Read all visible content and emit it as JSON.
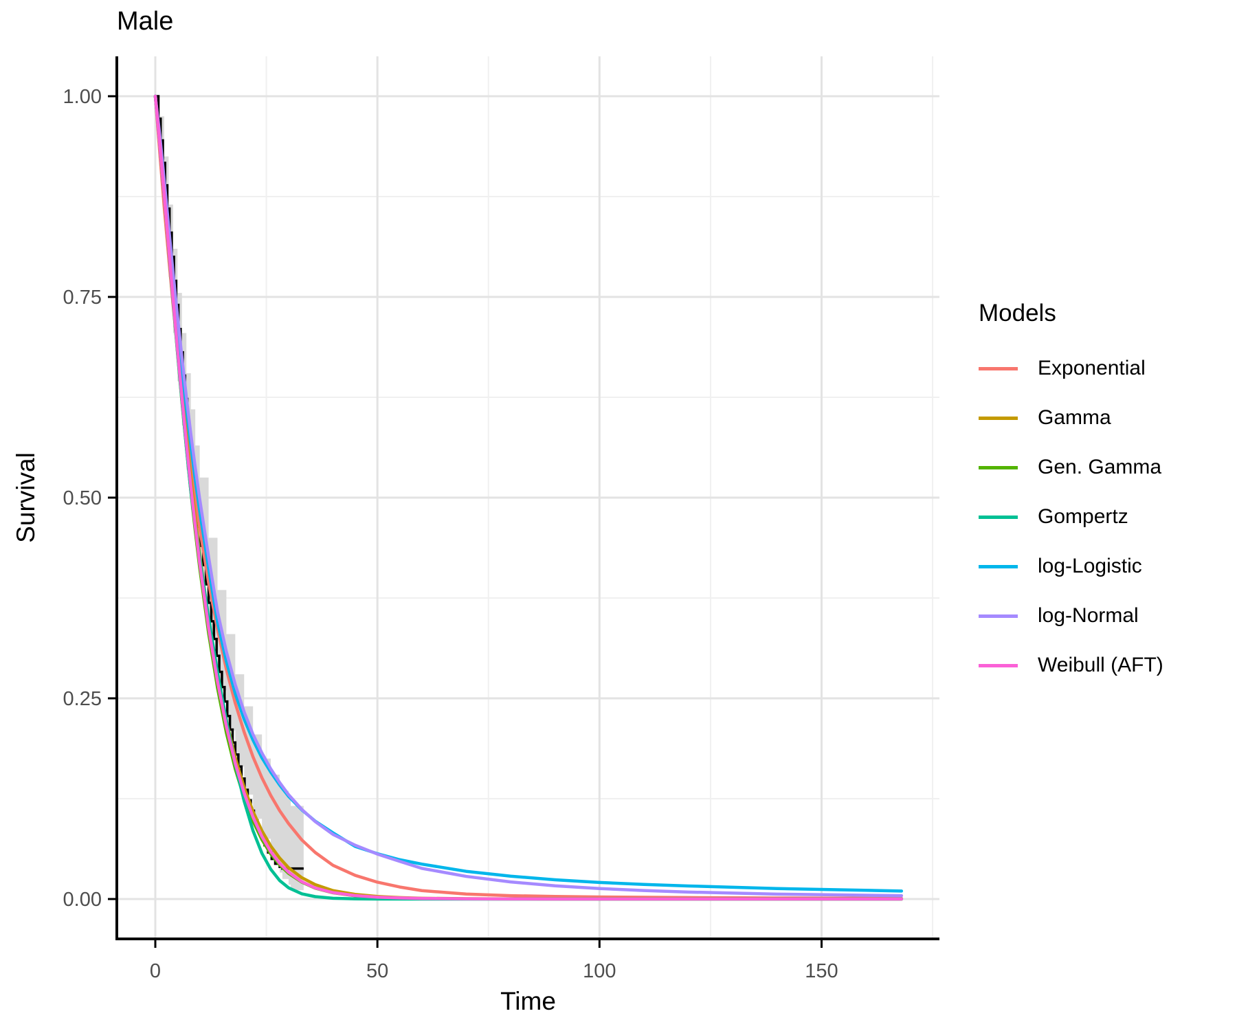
{
  "title": "Male",
  "axes": {
    "x": {
      "label": "Time",
      "tick_labels": [
        "0",
        "50",
        "100",
        "150"
      ],
      "tick_values": [
        0,
        50,
        100,
        150
      ],
      "minor_values": [
        25,
        75,
        125,
        175
      ],
      "range": [
        0,
        176.5
      ]
    },
    "y": {
      "label": "Survival",
      "tick_labels": [
        "1.00",
        "0.75",
        "0.50",
        "0.25",
        "0.00"
      ],
      "tick_values": [
        1,
        0.75,
        0.5,
        0.25,
        0
      ],
      "minor_values": [
        0.875,
        0.625,
        0.375,
        0.125
      ],
      "range": [
        -0.05,
        1.05
      ]
    }
  },
  "legend": {
    "title": "Models",
    "items": [
      {
        "label": "Exponential",
        "color": "#F8766D"
      },
      {
        "label": "Gamma",
        "color": "#C49A00"
      },
      {
        "label": "Gen. Gamma",
        "color": "#53B400"
      },
      {
        "label": "Gompertz",
        "color": "#00C094"
      },
      {
        "label": "log-Logistic",
        "color": "#00B6EB"
      },
      {
        "label": "log-Normal",
        "color": "#A58AFF"
      },
      {
        "label": "Weibull (AFT)",
        "color": "#FB61D7"
      }
    ]
  },
  "colors": {
    "grid_major": "#E3E3E3",
    "grid_minor": "#F0F0F0",
    "axis_line": "#000000",
    "tick_label": "#4D4D4D",
    "ribbon": "#D9D9D9",
    "km_step": "#000000",
    "panel_background": "#FFFFFF"
  },
  "chart_data": {
    "type": "line",
    "title": "Male",
    "xlabel": "Time",
    "ylabel": "Survival",
    "xlim": [
      0,
      168
    ],
    "ylim": [
      0,
      1
    ],
    "grid": true,
    "legend_position": "right",
    "ci_ribbon": {
      "name": "kaplan-meier-confidence-band",
      "color": "#D9D9D9",
      "points": [
        [
          0,
          1,
          1
        ],
        [
          1,
          0.92,
          0.975
        ],
        [
          2,
          0.845,
          0.925
        ],
        [
          3,
          0.775,
          0.865
        ],
        [
          4,
          0.705,
          0.81
        ],
        [
          5,
          0.645,
          0.755
        ],
        [
          6,
          0.59,
          0.705
        ],
        [
          7,
          0.535,
          0.655
        ],
        [
          8,
          0.485,
          0.61
        ],
        [
          9,
          0.44,
          0.565
        ],
        [
          10,
          0.4,
          0.525
        ],
        [
          12,
          0.325,
          0.45
        ],
        [
          14,
          0.26,
          0.385
        ],
        [
          16,
          0.21,
          0.33
        ],
        [
          18,
          0.165,
          0.28
        ],
        [
          20,
          0.13,
          0.24
        ],
        [
          22,
          0.1,
          0.205
        ],
        [
          24,
          0.075,
          0.175
        ],
        [
          26,
          0.052,
          0.155
        ],
        [
          28,
          0.033,
          0.14
        ],
        [
          28.6,
          0.025,
          0.135
        ],
        [
          30,
          0.018,
          0.125
        ],
        [
          30.5,
          0.011,
          0.116
        ],
        [
          33.4,
          0.011,
          0.116
        ]
      ]
    },
    "km_step": {
      "name": "kaplan-meier-estimate",
      "color": "#000000",
      "points": [
        [
          0,
          1.0
        ],
        [
          0.7,
          0.972
        ],
        [
          1.2,
          0.945
        ],
        [
          1.7,
          0.917
        ],
        [
          2.2,
          0.889
        ],
        [
          2.7,
          0.86
        ],
        [
          3.2,
          0.83
        ],
        [
          3.7,
          0.8
        ],
        [
          4.2,
          0.77
        ],
        [
          4.7,
          0.74
        ],
        [
          5.2,
          0.71
        ],
        [
          5.7,
          0.681
        ],
        [
          6.2,
          0.652
        ],
        [
          6.7,
          0.623
        ],
        [
          7.2,
          0.595
        ],
        [
          7.7,
          0.567
        ],
        [
          8.2,
          0.54
        ],
        [
          8.7,
          0.514
        ],
        [
          9.2,
          0.489
        ],
        [
          9.7,
          0.464
        ],
        [
          10.2,
          0.44
        ],
        [
          10.8,
          0.416
        ],
        [
          11.4,
          0.392
        ],
        [
          12,
          0.369
        ],
        [
          12.6,
          0.346
        ],
        [
          13.2,
          0.324
        ],
        [
          13.8,
          0.303
        ],
        [
          14.4,
          0.283
        ],
        [
          15,
          0.264
        ],
        [
          15.6,
          0.246
        ],
        [
          16.2,
          0.228
        ],
        [
          16.8,
          0.211
        ],
        [
          17.4,
          0.195
        ],
        [
          18,
          0.18
        ],
        [
          18.7,
          0.165
        ],
        [
          19.4,
          0.15
        ],
        [
          20.1,
          0.136
        ],
        [
          20.8,
          0.123
        ],
        [
          21.5,
          0.11
        ],
        [
          22.2,
          0.098
        ],
        [
          23,
          0.087
        ],
        [
          23.8,
          0.077
        ],
        [
          24.6,
          0.067
        ],
        [
          25.4,
          0.058
        ],
        [
          26.2,
          0.05
        ],
        [
          27,
          0.044
        ],
        [
          28,
          0.04
        ],
        [
          28.6,
          0.038
        ],
        [
          33.4,
          0.038
        ]
      ]
    },
    "series": [
      {
        "name": "Exponential",
        "color": "#F8766D",
        "x": [
          0,
          1,
          2,
          3,
          4,
          5,
          6,
          7,
          8,
          9,
          10,
          12,
          14,
          16,
          18,
          20,
          22,
          24,
          26,
          28,
          30,
          33,
          36,
          40,
          45,
          50,
          55,
          60,
          70,
          80,
          90,
          100,
          120,
          140,
          168
        ],
        "y": [
          1,
          0.93,
          0.862,
          0.8,
          0.74,
          0.685,
          0.634,
          0.586,
          0.541,
          0.5,
          0.462,
          0.394,
          0.336,
          0.286,
          0.244,
          0.208,
          0.177,
          0.151,
          0.129,
          0.11,
          0.094,
          0.0735,
          0.058,
          0.042,
          0.0295,
          0.021,
          0.015,
          0.0105,
          0.0062,
          0.0042,
          0.0032,
          0.0026,
          0.0018,
          0.0013,
          0.0008
        ]
      },
      {
        "name": "Gamma",
        "color": "#C49A00",
        "x": [
          0,
          1,
          2,
          3,
          4,
          5,
          6,
          7,
          8,
          9,
          10,
          12,
          14,
          16,
          18,
          20,
          22,
          24,
          26,
          28,
          30,
          33,
          36,
          40,
          45,
          50,
          55,
          60,
          70,
          80,
          90,
          100,
          120,
          140,
          168
        ],
        "y": [
          1,
          0.945,
          0.882,
          0.818,
          0.754,
          0.692,
          0.633,
          0.577,
          0.524,
          0.475,
          0.429,
          0.347,
          0.279,
          0.222,
          0.176,
          0.139,
          0.109,
          0.085,
          0.066,
          0.051,
          0.039,
          0.0265,
          0.018,
          0.0105,
          0.0058,
          0.0032,
          0.0018,
          0.001,
          0.0004,
          0.0002,
          0.0001,
          0,
          0,
          0,
          0
        ]
      },
      {
        "name": "Gen. Gamma",
        "color": "#53B400",
        "x": [
          0,
          1,
          2,
          3,
          4,
          5,
          6,
          7,
          8,
          9,
          10,
          12,
          14,
          16,
          18,
          20,
          22,
          24,
          26,
          28,
          30,
          33,
          36,
          40,
          45,
          50,
          55,
          60,
          70,
          80,
          90,
          100,
          120,
          140,
          168
        ],
        "y": [
          1,
          0.94,
          0.876,
          0.81,
          0.744,
          0.68,
          0.619,
          0.562,
          0.508,
          0.458,
          0.412,
          0.331,
          0.263,
          0.207,
          0.162,
          0.126,
          0.097,
          0.074,
          0.056,
          0.0425,
          0.032,
          0.021,
          0.0135,
          0.0078,
          0.004,
          0.0021,
          0.0011,
          0.0006,
          0.0002,
          0.0001,
          0,
          0,
          0,
          0,
          0
        ]
      },
      {
        "name": "Gompertz",
        "color": "#00C094",
        "x": [
          0,
          1,
          2,
          3,
          4,
          5,
          6,
          7,
          8,
          9,
          10,
          12,
          14,
          16,
          18,
          20,
          22,
          24,
          26,
          28,
          30,
          33,
          36,
          40,
          45,
          50,
          55,
          60,
          70,
          80,
          90,
          100,
          120,
          140,
          168
        ],
        "y": [
          1,
          0.94,
          0.877,
          0.812,
          0.746,
          0.681,
          0.62,
          0.562,
          0.508,
          0.465,
          0.425,
          0.35,
          0.283,
          0.222,
          0.168,
          0.122,
          0.085,
          0.057,
          0.037,
          0.023,
          0.014,
          0.0065,
          0.003,
          0.001,
          0.0002,
          0,
          0,
          0,
          0,
          0,
          0,
          0,
          0,
          0,
          0
        ]
      },
      {
        "name": "log-Logistic",
        "color": "#00B6EB",
        "x": [
          0,
          1,
          2,
          3,
          4,
          5,
          6,
          7,
          8,
          9,
          10,
          12,
          14,
          16,
          18,
          20,
          22,
          24,
          26,
          28,
          30,
          33,
          36,
          40,
          45,
          50,
          55,
          60,
          70,
          80,
          90,
          100,
          110,
          120,
          140,
          168
        ],
        "y": [
          1,
          0.946,
          0.888,
          0.828,
          0.77,
          0.714,
          0.661,
          0.611,
          0.565,
          0.522,
          0.483,
          0.412,
          0.345,
          0.296,
          0.256,
          0.224,
          0.198,
          0.176,
          0.158,
          0.142,
          0.128,
          0.111,
          0.097,
          0.0825,
          0.0655,
          0.0565,
          0.049,
          0.0435,
          0.0345,
          0.0285,
          0.024,
          0.0207,
          0.0182,
          0.0163,
          0.0131,
          0.01
        ]
      },
      {
        "name": "log-Normal",
        "color": "#A58AFF",
        "x": [
          0,
          1,
          2,
          3,
          4,
          5,
          6,
          7,
          8,
          9,
          10,
          12,
          14,
          16,
          18,
          20,
          22,
          24,
          26,
          28,
          30,
          33,
          36,
          40,
          45,
          50,
          55,
          60,
          70,
          80,
          90,
          100,
          110,
          120,
          140,
          168
        ],
        "y": [
          1,
          0.952,
          0.896,
          0.838,
          0.78,
          0.726,
          0.674,
          0.625,
          0.579,
          0.537,
          0.498,
          0.426,
          0.358,
          0.308,
          0.267,
          0.233,
          0.205,
          0.182,
          0.162,
          0.145,
          0.13,
          0.1115,
          0.0965,
          0.0805,
          0.067,
          0.056,
          0.047,
          0.0382,
          0.0282,
          0.0213,
          0.0165,
          0.0131,
          0.0106,
          0.0087,
          0.0061,
          0.0042
        ]
      },
      {
        "name": "Weibull (AFT)",
        "color": "#FB61D7",
        "x": [
          0,
          1,
          2,
          3,
          4,
          5,
          6,
          7,
          8,
          9,
          10,
          12,
          14,
          16,
          18,
          20,
          22,
          24,
          26,
          28,
          30,
          33,
          36,
          40,
          45,
          50,
          55,
          60,
          70,
          80,
          90,
          100,
          120,
          140,
          168
        ],
        "y": [
          1,
          0.94,
          0.877,
          0.812,
          0.747,
          0.684,
          0.624,
          0.567,
          0.514,
          0.464,
          0.418,
          0.338,
          0.271,
          0.215,
          0.169,
          0.132,
          0.102,
          0.078,
          0.059,
          0.0445,
          0.0335,
          0.0215,
          0.0138,
          0.008,
          0.0043,
          0.0024,
          0.0014,
          0.0008,
          0.0003,
          0.0001,
          0,
          0,
          0,
          0,
          0
        ]
      }
    ]
  }
}
